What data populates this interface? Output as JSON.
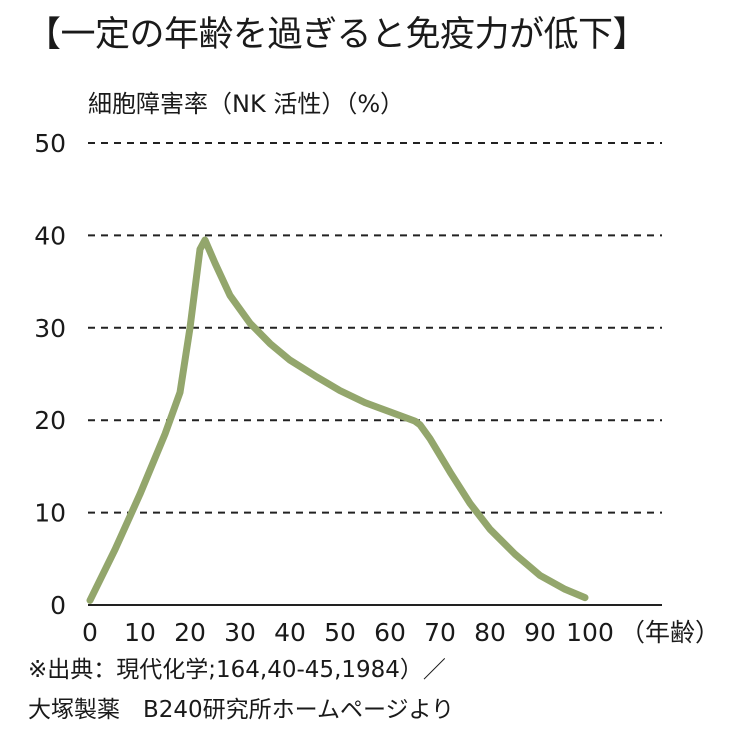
{
  "title": "【一定の年齢を過ぎると免疫力が低下】",
  "source_line1": "※出典：現代化学;164,40-45,1984）／",
  "source_line2": "大塚製薬　B240研究所ホームページより",
  "chart_data": {
    "type": "line",
    "title": "【一定の年齢を過ぎると免疫力が低下】",
    "ylabel": "細胞障害率（NK 活性）（%）",
    "xlabel": "",
    "x_unit_label": "（年齢）",
    "xlim": [
      0,
      100
    ],
    "ylim": [
      0,
      50
    ],
    "x_ticks": [
      "0",
      "10",
      "20",
      "30",
      "40",
      "50",
      "60",
      "70",
      "80",
      "90",
      "100"
    ],
    "y_ticks": [
      "0",
      "10",
      "20",
      "30",
      "40",
      "50"
    ],
    "grid": "horizontal dashed",
    "line_color": "#93a66c",
    "series": [
      {
        "x": [
          0,
          5,
          10,
          15,
          18,
          20,
          22,
          23,
          25,
          28,
          32,
          36,
          40,
          45,
          50,
          55,
          60,
          65,
          66,
          68,
          72,
          76,
          80,
          85,
          90,
          95,
          99
        ],
        "values": [
          0.5,
          6,
          12,
          18.5,
          23,
          30,
          38.5,
          39.5,
          37,
          33.5,
          30.5,
          28.3,
          26.5,
          24.8,
          23.2,
          21.9,
          20.9,
          19.9,
          19.5,
          18,
          14.4,
          11,
          8.2,
          5.5,
          3.2,
          1.7,
          0.8
        ]
      }
    ]
  }
}
